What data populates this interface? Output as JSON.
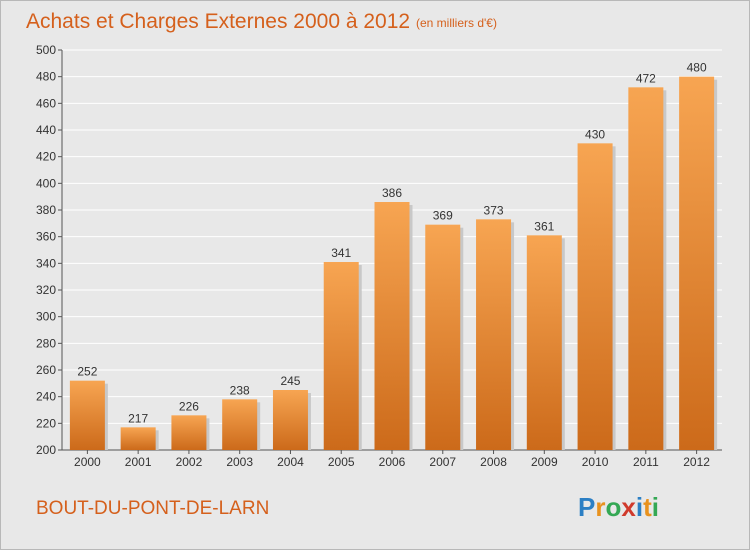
{
  "header": {
    "title": "Achats et Charges Externes 2000 à 2012",
    "unit": "(en milliers d'€)"
  },
  "location": "BOUT-DU-PONT-DE-LARN",
  "brand": {
    "letters": [
      "P",
      "r",
      "o",
      "x",
      "i",
      "t",
      "i"
    ],
    "colors": [
      "#2c7fc4",
      "#e8921e",
      "#34a854",
      "#d03a2c",
      "#2c7fc4",
      "#e8921e",
      "#34a854"
    ]
  },
  "chart_data": {
    "type": "bar",
    "categories": [
      "2000",
      "2001",
      "2002",
      "2003",
      "2004",
      "2005",
      "2006",
      "2007",
      "2008",
      "2009",
      "2010",
      "2011",
      "2012"
    ],
    "values": [
      252,
      217,
      226,
      238,
      245,
      341,
      386,
      369,
      373,
      361,
      430,
      472,
      480
    ],
    "value_labels": [
      "252",
      "217",
      "226",
      "238",
      "245",
      "341",
      "386",
      "369",
      "373",
      "361",
      "430",
      "472",
      "480"
    ],
    "ylim": [
      200,
      500
    ],
    "yticks": [
      200,
      220,
      240,
      260,
      280,
      300,
      320,
      340,
      360,
      380,
      400,
      420,
      440,
      460,
      480,
      500
    ],
    "ytick_labels": [
      "200",
      "220",
      "240",
      "260",
      "280",
      "300",
      "320",
      "340",
      "360",
      "380",
      "400",
      "420",
      "440",
      "460",
      "480",
      "500"
    ],
    "grid": true,
    "bar_color_top": "#f7a552",
    "bar_color_bottom": "#cc6a1a"
  }
}
